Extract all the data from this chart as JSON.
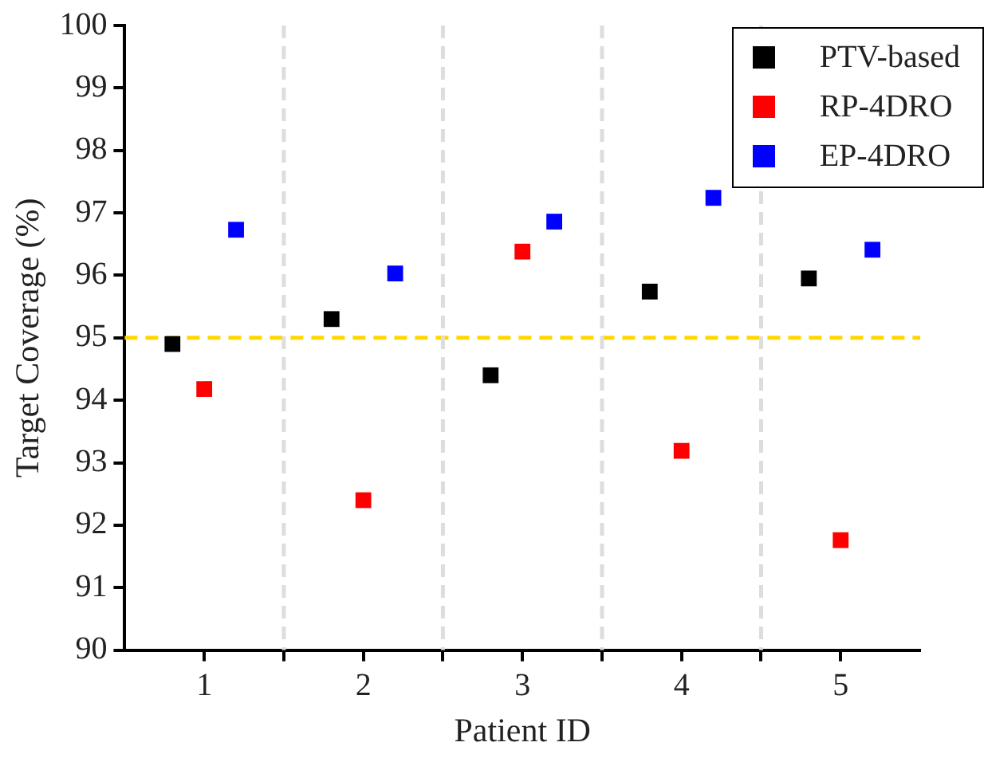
{
  "chart_data": {
    "type": "scatter",
    "xlabel": "Patient ID",
    "ylabel": "Target Coverage (%)",
    "xlim": [
      0.5,
      5.5
    ],
    "xticks": [
      1,
      {
        "value": 1.5,
        "label": null
      },
      2,
      {
        "value": 2.5,
        "label": null
      },
      3,
      {
        "value": 3.5,
        "label": null
      },
      4,
      {
        "value": 4.5,
        "label": null
      },
      5
    ],
    "ylim": [
      90,
      100
    ],
    "yticks": [
      90,
      91,
      92,
      93,
      94,
      95,
      96,
      97,
      98,
      99,
      100
    ],
    "grid": false,
    "legend": "top right",
    "marker": "square",
    "series": [
      {
        "name": "PTV-based",
        "color": "#000000",
        "x": [
          0.8,
          1.8,
          2.8,
          3.8,
          4.8
        ],
        "values": [
          94.9,
          95.3,
          94.4,
          95.74,
          95.95
        ]
      },
      {
        "name": "RP-4DRO",
        "color": "#ff0000",
        "x": [
          1,
          2,
          3,
          4,
          5
        ],
        "values": [
          94.18,
          92.4,
          96.38,
          93.19,
          91.76
        ]
      },
      {
        "name": "EP-4DRO",
        "color": "#0000ff",
        "x": [
          1.2,
          2.2,
          3.2,
          4.2,
          5.2
        ],
        "values": [
          96.73,
          96.03,
          96.86,
          97.24,
          96.41
        ]
      }
    ],
    "ref_lines": [
      {
        "axis": "y",
        "value": 95,
        "color": "#ffd700",
        "line_style": "dashed"
      },
      {
        "axis": "x",
        "value": 1.5,
        "color": "#dddddd",
        "line_style": "dashed"
      },
      {
        "axis": "x",
        "value": 2.5,
        "color": "#dddddd",
        "line_style": "dashed"
      },
      {
        "axis": "x",
        "value": 3.5,
        "color": "#dddddd",
        "line_style": "dashed"
      },
      {
        "axis": "x",
        "value": 4.5,
        "color": "#dddddd",
        "line_style": "dashed"
      }
    ]
  }
}
